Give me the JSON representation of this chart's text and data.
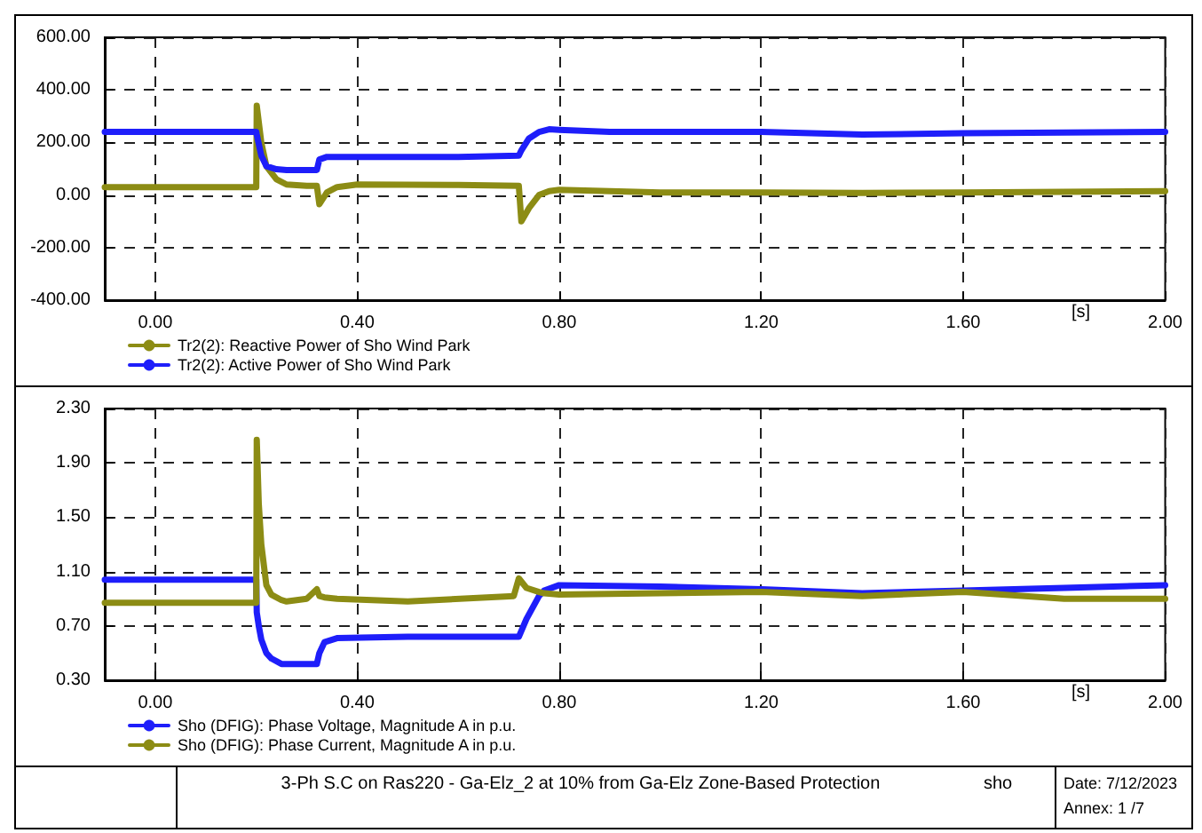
{
  "chart_data": [
    {
      "type": "line",
      "xlabel": "[s]",
      "xlim": [
        -0.1,
        2.0
      ],
      "xticks": [
        {
          "value": 0,
          "label": "0.00"
        },
        {
          "value": 0.4,
          "label": "0.40"
        },
        {
          "value": 0.8,
          "label": "0.80"
        },
        {
          "value": 1.2,
          "label": "1.20"
        },
        {
          "value": 1.6,
          "label": "1.60"
        },
        {
          "value": 2.0,
          "label": "2.00"
        }
      ],
      "ylim": [
        -400,
        600
      ],
      "yticks": [
        {
          "value": -400,
          "label": "-400.00"
        },
        {
          "value": -200,
          "label": "-200.00"
        },
        {
          "value": 0,
          "label": "0.00"
        },
        {
          "value": 200,
          "label": "200.00"
        },
        {
          "value": 400,
          "label": "400.00"
        },
        {
          "value": 600,
          "label": "600.00"
        }
      ],
      "grid": true,
      "legend": "bottom left",
      "line_style": "solid",
      "marker": "none",
      "x": [
        -0.1,
        0.2,
        0.201,
        0.21,
        0.22,
        0.24,
        0.26,
        0.3,
        0.32,
        0.325,
        0.34,
        0.36,
        0.4,
        0.6,
        0.72,
        0.725,
        0.74,
        0.76,
        0.78,
        0.8,
        0.9,
        1.0,
        1.2,
        1.4,
        1.6,
        1.8,
        2.0
      ],
      "series": [
        {
          "name": "Tr2(2): Reactive Power of Sho Wind Park",
          "color": "#8c8c14",
          "values": [
            30,
            30,
            340,
            200,
            110,
            60,
            40,
            35,
            35,
            -35,
            10,
            30,
            40,
            38,
            35,
            -100,
            -50,
            0,
            15,
            20,
            15,
            10,
            10,
            8,
            10,
            12,
            15
          ]
        },
        {
          "name": "Tr2(2): Active Power of Sho Wind Park",
          "color": "#1e1efa",
          "values": [
            240,
            240,
            230,
            150,
            110,
            98,
            95,
            95,
            95,
            135,
            145,
            145,
            145,
            145,
            150,
            170,
            215,
            240,
            250,
            248,
            240,
            240,
            240,
            230,
            235,
            238,
            240
          ]
        }
      ]
    },
    {
      "type": "line",
      "xlabel": "[s]",
      "xlim": [
        -0.1,
        2.0
      ],
      "xticks": [
        {
          "value": 0,
          "label": "0.00"
        },
        {
          "value": 0.4,
          "label": "0.40"
        },
        {
          "value": 0.8,
          "label": "0.80"
        },
        {
          "value": 1.2,
          "label": "1.20"
        },
        {
          "value": 1.6,
          "label": "1.60"
        },
        {
          "value": 2.0,
          "label": "2.00"
        }
      ],
      "ylim": [
        0.3,
        2.3
      ],
      "yticks": [
        {
          "value": 0.3,
          "label": "0.30"
        },
        {
          "value": 0.7,
          "label": "0.70"
        },
        {
          "value": 1.1,
          "label": "1.10"
        },
        {
          "value": 1.5,
          "label": "1.50"
        },
        {
          "value": 1.9,
          "label": "1.90"
        },
        {
          "value": 2.3,
          "label": "2.30"
        }
      ],
      "grid": true,
      "legend": "bottom left",
      "line_style": "solid",
      "marker": "none",
      "x": [
        -0.1,
        0.2,
        0.201,
        0.205,
        0.21,
        0.22,
        0.23,
        0.25,
        0.26,
        0.3,
        0.32,
        0.325,
        0.335,
        0.36,
        0.5,
        0.71,
        0.72,
        0.735,
        0.76,
        0.77,
        0.8,
        1.0,
        1.2,
        1.4,
        1.6,
        1.8,
        2.0
      ],
      "series": [
        {
          "name": "Sho (DFIG): Phase Voltage, Magnitude A in p.u.",
          "color": "#1e1efa",
          "values": [
            1.04,
            1.04,
            0.8,
            0.7,
            0.6,
            0.5,
            0.46,
            0.42,
            0.42,
            0.42,
            0.42,
            0.5,
            0.58,
            0.61,
            0.62,
            0.62,
            0.62,
            0.75,
            0.92,
            0.96,
            1.0,
            0.99,
            0.97,
            0.94,
            0.96,
            0.98,
            1.0
          ]
        },
        {
          "name": "Sho (DFIG): Phase Current, Magnitude A in p.u.",
          "color": "#8c8c14",
          "values": [
            0.87,
            0.87,
            2.07,
            1.6,
            1.3,
            1.0,
            0.93,
            0.89,
            0.88,
            0.9,
            0.97,
            0.92,
            0.91,
            0.9,
            0.88,
            0.92,
            1.05,
            0.98,
            0.95,
            0.94,
            0.93,
            0.94,
            0.95,
            0.92,
            0.95,
            0.9,
            0.9
          ]
        }
      ],
      "annotations": [
        "3-Ph S.C on Ras220 - Ga-Elz_2  at 10% from Ga-Elz Zone-Based Protection",
        "sho",
        "Date:  7/12/2023",
        "Annex: 1 /7"
      ]
    }
  ]
}
